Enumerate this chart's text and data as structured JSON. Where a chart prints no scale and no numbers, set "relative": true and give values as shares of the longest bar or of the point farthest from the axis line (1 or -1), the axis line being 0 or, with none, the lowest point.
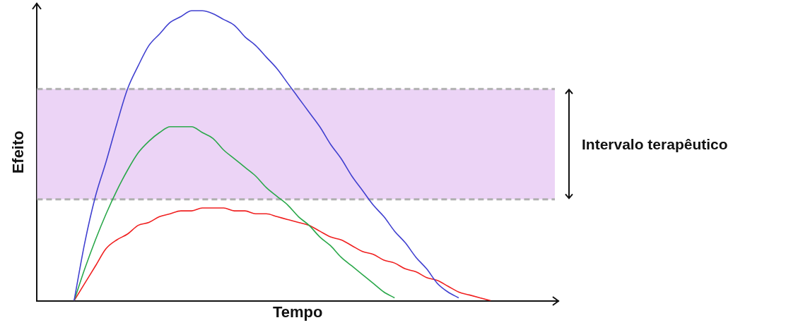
{
  "chart_data": {
    "type": "line",
    "relative": true,
    "xlabel": "Tempo",
    "ylabel": "Efeito",
    "grid": false,
    "legend": false,
    "marker": "none",
    "line_style": "solid",
    "categories": [
      null,
      null,
      null,
      null,
      null,
      null,
      null,
      null,
      null,
      null,
      null,
      null,
      null,
      null,
      null,
      null,
      null,
      null,
      null,
      null,
      null,
      null,
      null,
      null,
      null,
      null,
      null,
      null,
      null,
      null,
      null,
      null,
      null,
      null,
      null,
      null,
      null,
      null,
      null,
      null
    ],
    "series": [
      {
        "color": "#4040d0",
        "values": [
          0,
          0.2,
          0.36,
          0.48,
          0.61,
          0.73,
          0.81,
          0.88,
          0.92,
          0.96,
          0.98,
          1,
          1,
          0.99,
          0.97,
          0.95,
          0.91,
          0.88,
          0.84,
          0.8,
          0.75,
          0.7,
          0.65,
          0.6,
          0.54,
          0.49,
          0.43,
          0.38,
          0.33,
          0.29,
          0.24,
          0.2,
          0.15,
          0.11,
          0.06,
          0.03,
          0.01,
          null,
          null,
          null
        ]
      },
      {
        "color": "#2aa84a",
        "values": [
          0,
          0.11,
          0.21,
          0.3,
          0.38,
          0.45,
          0.51,
          0.55,
          0.58,
          0.6,
          0.6,
          0.6,
          0.58,
          0.56,
          0.52,
          0.49,
          0.46,
          0.43,
          0.39,
          0.36,
          0.33,
          0.29,
          0.26,
          0.22,
          0.19,
          0.15,
          0.12,
          0.09,
          0.06,
          0.03,
          0.01,
          null,
          null,
          null,
          null,
          null,
          null,
          null,
          null,
          null
        ]
      },
      {
        "color": "#f02020",
        "values": [
          0,
          0.06,
          0.12,
          0.18,
          0.21,
          0.23,
          0.26,
          0.27,
          0.29,
          0.3,
          0.31,
          0.31,
          0.32,
          0.32,
          0.32,
          0.31,
          0.31,
          0.3,
          0.3,
          0.29,
          0.28,
          0.27,
          0.26,
          0.24,
          0.22,
          0.21,
          0.19,
          0.17,
          0.16,
          0.14,
          0.13,
          0.11,
          0.1,
          0.08,
          0.07,
          0.05,
          0.03,
          0.02,
          0.01,
          0
        ]
      }
    ],
    "bands": [
      {
        "axis": "y",
        "from": 0.35,
        "to": 0.73,
        "label": "Intervalo terapêutico",
        "color": "#ecd4f6"
      }
    ],
    "ref_lines": [
      {
        "axis": "y",
        "value": 0.73,
        "color": "#b0b0b0",
        "line_style": "dashed"
      },
      {
        "axis": "y",
        "value": 0.35,
        "color": "#b0b0b0",
        "line_style": "dashed"
      }
    ]
  }
}
